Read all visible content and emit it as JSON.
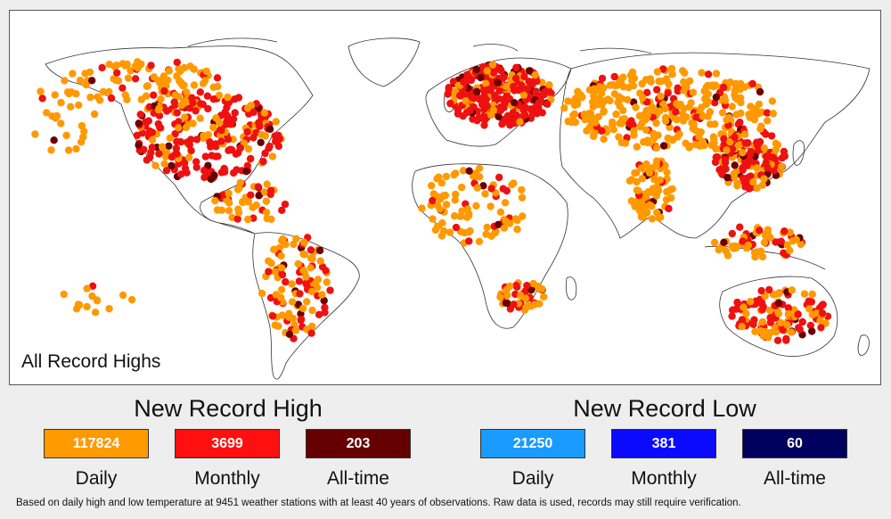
{
  "map": {
    "caption": "All Record Highs",
    "colors": {
      "land_outline": "#333333",
      "background": "#ffffff",
      "daily_high": "#ff9900",
      "monthly_high": "#ee1111",
      "alltime_high": "#6b0000"
    }
  },
  "legend": {
    "high": {
      "title": "New Record High",
      "items": [
        {
          "count": "117824",
          "label": "Daily",
          "color": "#ff9a00"
        },
        {
          "count": "3699",
          "label": "Monthly",
          "color": "#ff0f0f"
        },
        {
          "count": "203",
          "label": "All-time",
          "color": "#660000"
        }
      ]
    },
    "low": {
      "title": "New Record Low",
      "items": [
        {
          "count": "21250",
          "label": "Daily",
          "color": "#1a9bff"
        },
        {
          "count": "381",
          "label": "Monthly",
          "color": "#0a0aff"
        },
        {
          "count": "60",
          "label": "All-time",
          "color": "#00005e"
        }
      ]
    }
  },
  "footnote": "Based on daily high and low temperature at 9451 weather stations with at least 40 years of observations.  Raw data is used, records may still require verification."
}
